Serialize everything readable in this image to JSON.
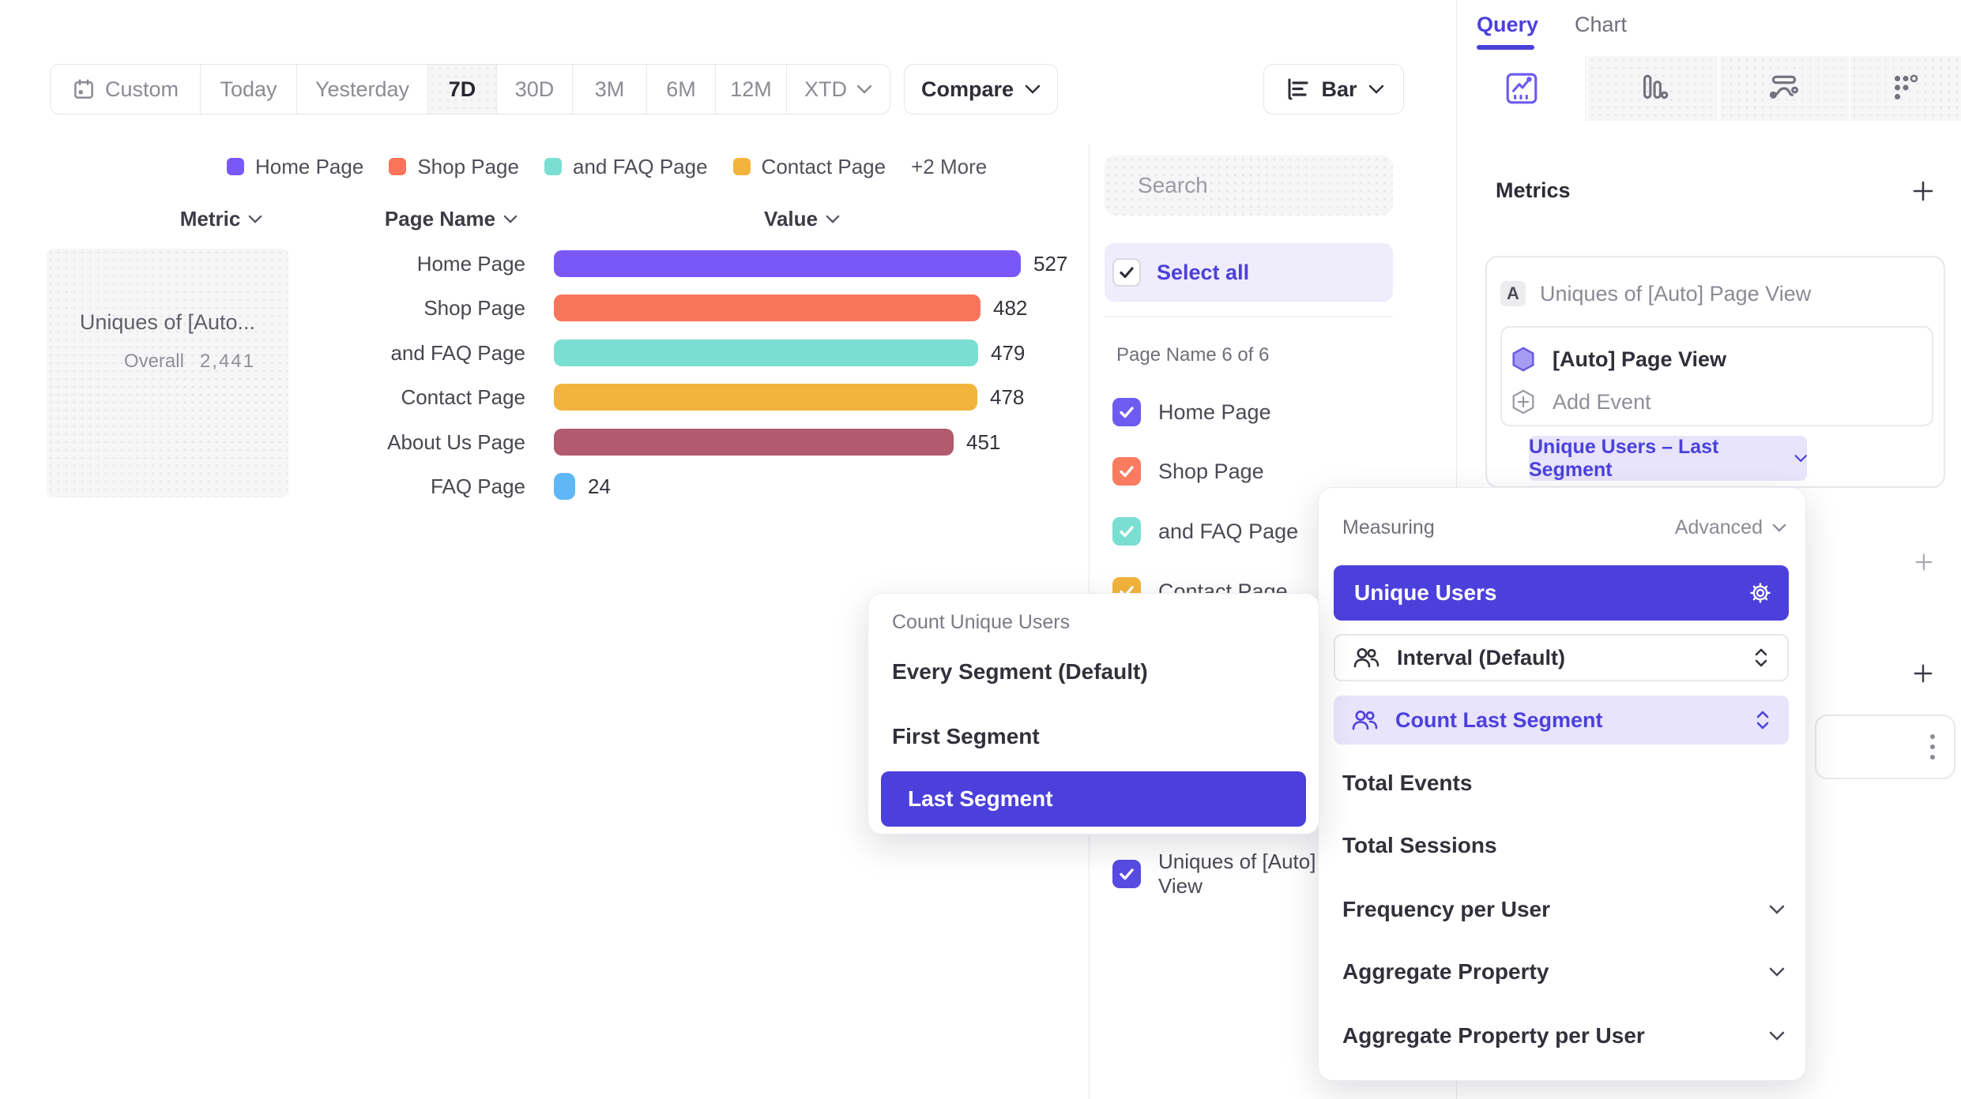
{
  "colors": {
    "accent": "#4C40DC",
    "accent_light": "#E7E4FB",
    "select_all_bg": "#EFECFC",
    "bar_home": "#7A57F8",
    "bar_shop": "#F9745A",
    "bar_faq_combo": "#7ADFD2",
    "bar_contact": "#F3B43D",
    "bar_about": "#B25A6E",
    "bar_faq": "#5FB7F7"
  },
  "toolbar": {
    "ranges": [
      "Custom",
      "Today",
      "Yesterday",
      "7D",
      "30D",
      "3M",
      "6M",
      "12M",
      "XTD"
    ],
    "selected_range": "7D",
    "compare_label": "Compare",
    "chart_type": "Bar"
  },
  "legend": {
    "items": [
      {
        "label": "Home Page",
        "color": "#7A57F8"
      },
      {
        "label": "Shop Page",
        "color": "#F9745A"
      },
      {
        "label": "and FAQ Page",
        "color": "#7ADFD2"
      },
      {
        "label": "Contact Page",
        "color": "#F3B43D"
      }
    ],
    "more_label": "+2 More"
  },
  "table": {
    "headers": {
      "metric": "Metric",
      "page_name": "Page Name",
      "value": "Value"
    },
    "metric_cell": {
      "title": "Uniques of [Auto...",
      "overall_label": "Overall",
      "overall_value": "2,441"
    }
  },
  "chart_data": {
    "type": "bar",
    "orientation": "horizontal",
    "categories": [
      "Home Page",
      "Shop Page",
      "and FAQ Page",
      "Contact Page",
      "About Us Page",
      "FAQ Page"
    ],
    "values": [
      527,
      482,
      479,
      478,
      451,
      24
    ],
    "colors": [
      "#7A57F8",
      "#F9745A",
      "#7ADFD2",
      "#F3B43D",
      "#B25A6E",
      "#5FB7F7"
    ],
    "series_name": "Uniques of [Auto] Page View",
    "overall_total": 2441,
    "xlim": [
      0,
      560
    ],
    "grid": false,
    "legend_position": "top"
  },
  "filter_panel": {
    "search_placeholder": "Search",
    "select_all_label": "Select all",
    "section_label": "Page Name 6 of 6",
    "items": [
      {
        "label": "Home Page",
        "color": "#6E5BF0",
        "checked": true
      },
      {
        "label": "Shop Page",
        "color": "#FA7B5F",
        "checked": true
      },
      {
        "label": "and FAQ Page",
        "color": "#7ADFD2",
        "checked": true
      },
      {
        "label": "Contact Page",
        "color": "#F3B43D",
        "checked": true
      }
    ],
    "bottom_item": {
      "line1": "Uniques of [Auto]",
      "line2": "View",
      "color": "#584BE2",
      "checked": true
    }
  },
  "count_dropdown": {
    "title": "Count Unique Users",
    "options": [
      "Every Segment (Default)",
      "First Segment",
      "Last Segment"
    ],
    "selected": "Last Segment"
  },
  "right_panel": {
    "tabs": {
      "query": "Query",
      "chart": "Chart",
      "active": "Query"
    },
    "metrics": {
      "heading": "Metrics",
      "row_letter": "A",
      "row_title": "Uniques of [Auto] Page View",
      "event_name": "[Auto] Page View",
      "add_event_label": "Add Event",
      "hash": "#",
      "aggregation_pill": "Unique Users – Last Segment"
    },
    "measuring_dropdown": {
      "label": "Measuring",
      "advanced_label": "Advanced",
      "selected": "Unique Users",
      "interval_row": "Interval (Default)",
      "count_row": "Count Last Segment",
      "plain_options": [
        "Total Events",
        "Total Sessions"
      ],
      "expandable_options": [
        "Frequency per User",
        "Aggregate Property",
        "Aggregate Property per User"
      ]
    }
  }
}
